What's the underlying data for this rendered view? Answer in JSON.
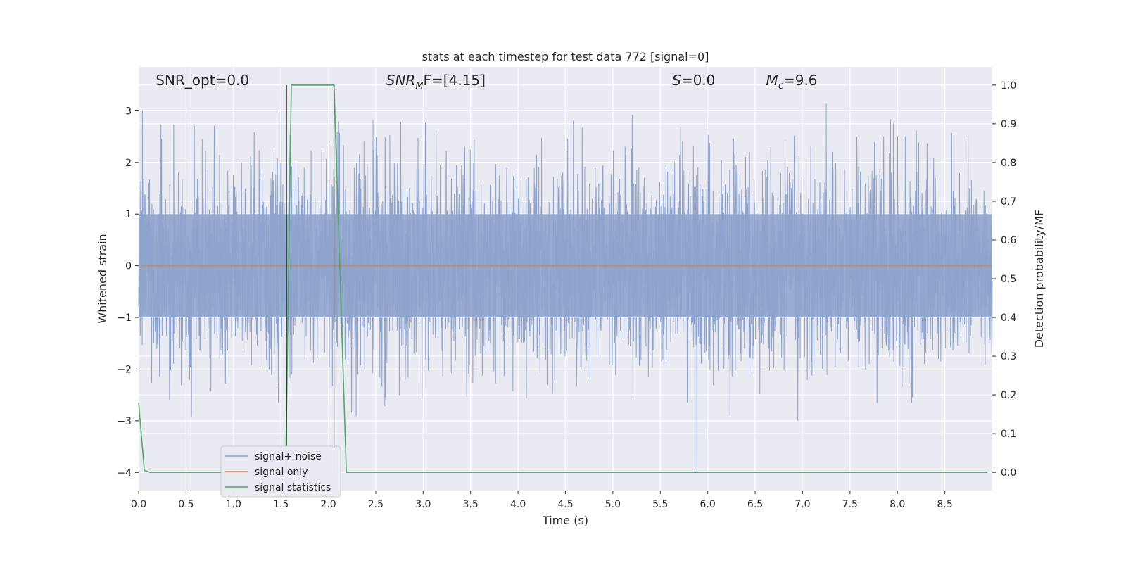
{
  "chart_data": {
    "type": "line",
    "title": "stats at each timestep for test data 772 [signal=0]",
    "xlabel": "Time (s)",
    "ylabel_left": "Whitened strain",
    "ylabel_right": "Detection probability/MF",
    "xlim": [
      0.0,
      9.0
    ],
    "ylim_left": [
      -4.35,
      3.85
    ],
    "ylim_right": [
      -0.047,
      1.047
    ],
    "xticks": [
      0.0,
      0.5,
      1.0,
      1.5,
      2.0,
      2.5,
      3.0,
      3.5,
      4.0,
      4.5,
      5.0,
      5.5,
      6.0,
      6.5,
      7.0,
      7.5,
      8.0,
      8.5
    ],
    "xtick_labels": [
      "0.0",
      "0.5",
      "1.0",
      "1.5",
      "2.0",
      "2.5",
      "3.0",
      "3.5",
      "4.0",
      "4.5",
      "5.0",
      "5.5",
      "6.0",
      "6.5",
      "7.0",
      "7.5",
      "8.0",
      "8.5"
    ],
    "yticks_left": [
      3,
      2,
      1,
      0,
      -1,
      -2,
      -3,
      -4
    ],
    "ytick_labels_left": [
      "3",
      "2",
      "1",
      "0",
      "−1",
      "−2",
      "−3",
      "−4"
    ],
    "yticks_right": [
      1.0,
      0.9,
      0.8,
      0.7,
      0.6,
      0.5,
      0.4,
      0.3,
      0.2,
      0.1,
      0.0
    ],
    "ytick_labels_right": [
      "1.0",
      "0.9",
      "0.8",
      "0.7",
      "0.6",
      "0.5",
      "0.4",
      "0.3",
      "0.2",
      "0.1",
      "0.0"
    ],
    "grid": true,
    "legend_position": "lower-left",
    "annotations": [
      {
        "text": "SNR_opt=0.0",
        "x_frac": 0.02
      },
      {
        "text": "SNR",
        "sub": "M",
        "rest": "F=[4.15]",
        "x_frac": 0.29,
        "italic_prefix": true
      },
      {
        "text": "S",
        "sub": "",
        "rest": "=0.0",
        "x_frac": 0.625,
        "italic_prefix": true
      },
      {
        "text": "M",
        "sub": "c",
        "rest": "=9.6",
        "x_frac": 0.735,
        "italic_prefix": true
      }
    ],
    "series": [
      {
        "name": "signal+ noise",
        "color": "#8fa4cc",
        "axis": "left",
        "kind": "noise",
        "envelope_core": [
          -1.0,
          1.0
        ],
        "peak_range": [
          -4.0,
          3.4
        ],
        "n_samples": 3600
      },
      {
        "name": "signal only",
        "color": "#dd8452",
        "axis": "left",
        "x": [
          0.0,
          9.0
        ],
        "y": [
          0.0,
          0.0
        ]
      },
      {
        "name": "signal statistics",
        "color": "#55a868",
        "axis": "right",
        "x": [
          0.0,
          0.06,
          0.12,
          1.55,
          1.61,
          2.06,
          2.19,
          8.95
        ],
        "y": [
          0.18,
          0.005,
          0.0,
          0.0,
          1.0,
          1.0,
          0.0,
          0.0
        ]
      }
    ],
    "vertical_markers": [
      {
        "x": 1.56,
        "color": "#000000"
      },
      {
        "x": 2.06,
        "color": "#000000"
      }
    ]
  }
}
